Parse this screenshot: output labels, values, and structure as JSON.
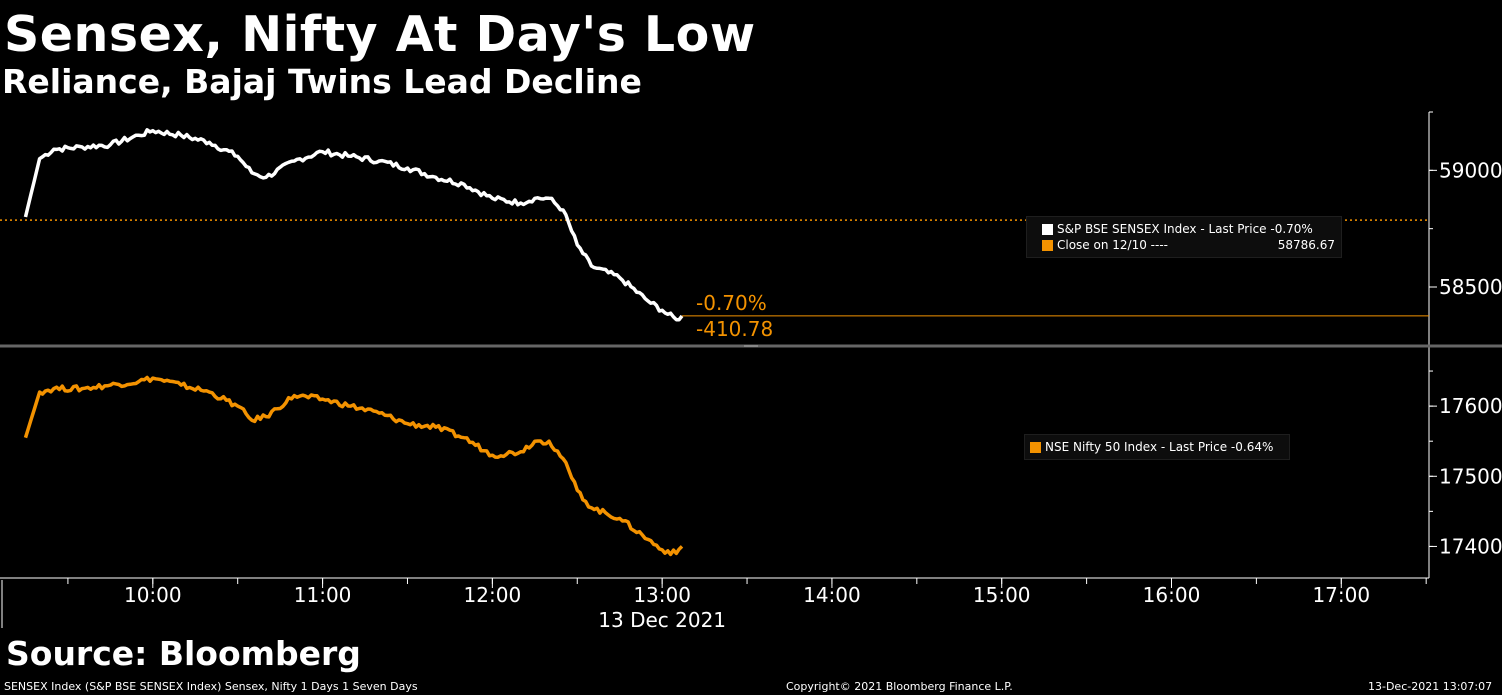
{
  "header": {
    "title": "Sensex, Nifty At Day's Low",
    "subtitle": "Reliance, Bajaj Twins Lead Decline"
  },
  "source": "Source: Bloomberg",
  "footer": {
    "left": "SENSEX Index (S&P BSE SENSEX Index) Sensex, Nifty 1 Days 1 Seven Days",
    "center": "Copyright© 2021 Bloomberg Finance L.P.",
    "right": "13-Dec-2021 13:07:07"
  },
  "colors": {
    "white_series": "#ffffff",
    "orange_series": "#f39200",
    "background": "#000000"
  },
  "chart_data": [
    {
      "type": "line",
      "panel": "top",
      "legend": {
        "series_label": "S&P BSE SENSEX Index - Last Price -0.70%",
        "close_label": "Close on 12/10 ----",
        "close_value": "58786.67"
      },
      "annotations": {
        "pct_change": "-0.70%",
        "abs_change": "-410.78"
      },
      "reference_line": {
        "name": "Close on 12/10",
        "value": 58786.67
      },
      "y_ticks": [
        "59000",
        "58500"
      ],
      "y_range": [
        58260,
        59250
      ],
      "series": [
        {
          "name": "S&P BSE SENSEX Index",
          "color": "#ffffff",
          "points": [
            [
              "09:15",
              58800
            ],
            [
              "09:20",
              59050
            ],
            [
              "09:25",
              59090
            ],
            [
              "09:35",
              59100
            ],
            [
              "09:45",
              59110
            ],
            [
              "09:55",
              59150
            ],
            [
              "10:00",
              59170
            ],
            [
              "10:10",
              59150
            ],
            [
              "10:20",
              59120
            ],
            [
              "10:30",
              59060
            ],
            [
              "10:35",
              58990
            ],
            [
              "10:40",
              58970
            ],
            [
              "10:50",
              59040
            ],
            [
              "11:00",
              59080
            ],
            [
              "11:10",
              59060
            ],
            [
              "11:20",
              59040
            ],
            [
              "11:30",
              59010
            ],
            [
              "11:40",
              58970
            ],
            [
              "11:50",
              58940
            ],
            [
              "12:00",
              58880
            ],
            [
              "12:10",
              58860
            ],
            [
              "12:15",
              58880
            ],
            [
              "12:20",
              58880
            ],
            [
              "12:25",
              58830
            ],
            [
              "12:30",
              58680
            ],
            [
              "12:35",
              58590
            ],
            [
              "12:45",
              58540
            ],
            [
              "12:55",
              58440
            ],
            [
              "13:00",
              58400
            ],
            [
              "13:05",
              58360
            ],
            [
              "13:07",
              58376
            ]
          ]
        }
      ]
    },
    {
      "type": "line",
      "panel": "bottom",
      "legend": {
        "series_label": "NSE Nifty 50 Index - Last Price -0.64%"
      },
      "y_ticks": [
        "17600",
        "17500",
        "17400"
      ],
      "y_range": [
        17355,
        17680
      ],
      "series": [
        {
          "name": "NSE Nifty 50 Index",
          "color": "#f39200",
          "points": [
            [
              "09:15",
              17555
            ],
            [
              "09:20",
              17620
            ],
            [
              "09:25",
              17625
            ],
            [
              "09:35",
              17625
            ],
            [
              "09:45",
              17630
            ],
            [
              "09:55",
              17635
            ],
            [
              "10:00",
              17640
            ],
            [
              "10:10",
              17630
            ],
            [
              "10:20",
              17620
            ],
            [
              "10:30",
              17600
            ],
            [
              "10:35",
              17580
            ],
            [
              "10:40",
              17585
            ],
            [
              "10:50",
              17615
            ],
            [
              "11:00",
              17610
            ],
            [
              "11:10",
              17600
            ],
            [
              "11:20",
              17590
            ],
            [
              "11:30",
              17575
            ],
            [
              "11:40",
              17570
            ],
            [
              "11:50",
              17555
            ],
            [
              "12:00",
              17530
            ],
            [
              "12:10",
              17535
            ],
            [
              "12:15",
              17550
            ],
            [
              "12:20",
              17550
            ],
            [
              "12:25",
              17525
            ],
            [
              "12:30",
              17480
            ],
            [
              "12:35",
              17455
            ],
            [
              "12:45",
              17440
            ],
            [
              "12:55",
              17410
            ],
            [
              "13:00",
              17395
            ],
            [
              "13:05",
              17390
            ],
            [
              "13:07",
              17400
            ]
          ]
        }
      ]
    }
  ],
  "x_axis": {
    "ticks": [
      "10:00",
      "11:00",
      "12:00",
      "13:00",
      "14:00",
      "15:00",
      "16:00",
      "17:00"
    ],
    "date_label": "13 Dec 2021",
    "range": [
      "09:06",
      "17:31"
    ]
  }
}
